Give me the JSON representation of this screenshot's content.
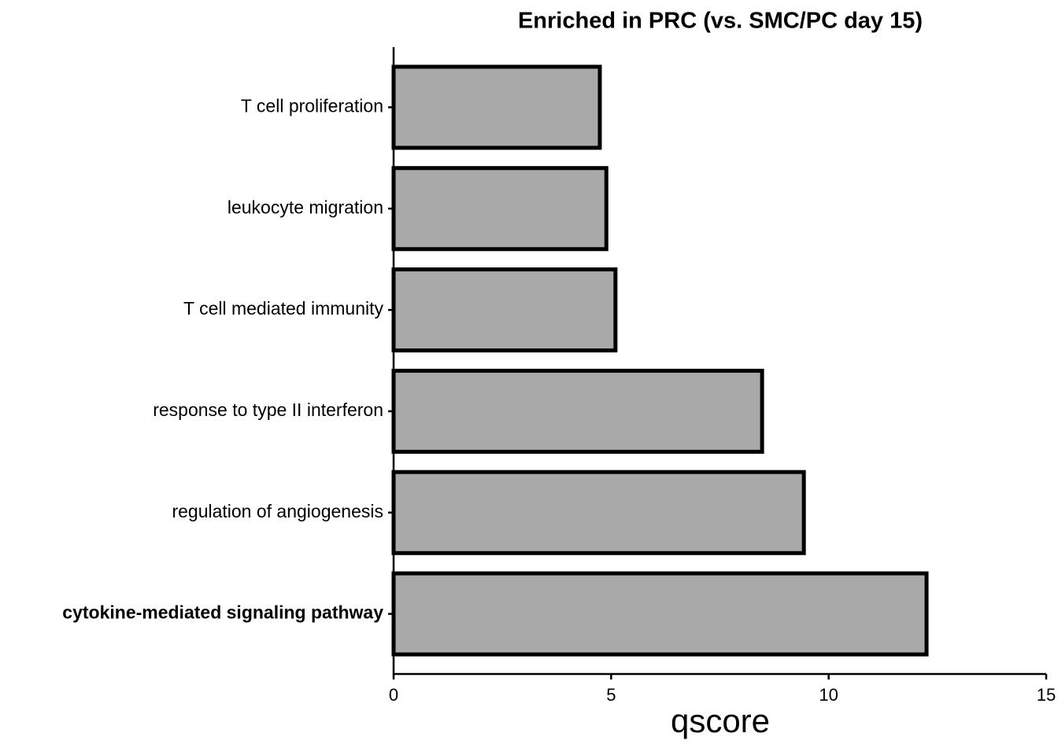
{
  "chart_data": {
    "type": "barh",
    "title": "Enriched in PRC (vs. SMC/PC day 15)",
    "categories": [
      "T cell proliferation",
      "leukocyte migration",
      "T cell mediated immunity",
      "response to type II interferon",
      "regulation of angiogenesis",
      "cytokine-mediated signaling pathway"
    ],
    "bold": [
      false,
      false,
      false,
      false,
      false,
      true
    ],
    "values": [
      4.74,
      4.89,
      5.1,
      8.47,
      9.43,
      12.25
    ],
    "color": "#a9a9a9",
    "edgecolor": "#000000",
    "xlabel": "qscore",
    "xlim": [
      0,
      15
    ],
    "xticks": [
      0,
      5,
      10,
      15
    ],
    "grid": false
  }
}
